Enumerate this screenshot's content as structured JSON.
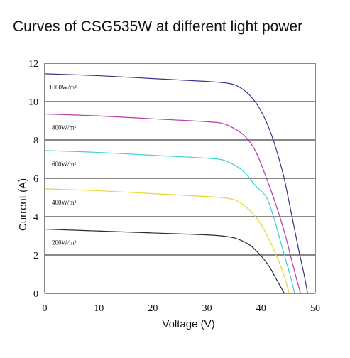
{
  "chart_data": {
    "type": "line",
    "title": "Curves of CSG535W at different light power",
    "xlabel": "Voltage (V)",
    "ylabel": "Current (A)",
    "xlim": [
      0,
      50
    ],
    "ylim": [
      0,
      12
    ],
    "x_ticks": [
      "0",
      "10",
      "20",
      "30",
      "40",
      "50"
    ],
    "y_ticks": [
      "0",
      "2",
      "4",
      "6",
      "8",
      "10",
      "12"
    ],
    "grid": "horizontal",
    "legend": "inline labels above each curve",
    "series": [
      {
        "name": "1000W/m²",
        "color": "#3a3385",
        "points": [
          [
            0,
            11.45
          ],
          [
            10,
            11.35
          ],
          [
            20,
            11.2
          ],
          [
            30,
            11.05
          ],
          [
            34,
            10.95
          ],
          [
            36,
            10.75
          ],
          [
            38,
            10.3
          ],
          [
            40,
            9.5
          ],
          [
            42,
            8.2
          ],
          [
            44,
            6.3
          ],
          [
            45,
            5.0
          ],
          [
            46,
            3.6
          ],
          [
            47,
            2.2
          ],
          [
            48,
            0.9
          ],
          [
            48.6,
            0
          ]
        ]
      },
      {
        "name": "800W/m²",
        "color": "#b13dac",
        "points": [
          [
            0,
            9.35
          ],
          [
            10,
            9.25
          ],
          [
            20,
            9.1
          ],
          [
            30,
            8.95
          ],
          [
            33,
            8.85
          ],
          [
            35,
            8.6
          ],
          [
            37,
            8.2
          ],
          [
            39,
            7.4
          ],
          [
            41,
            6.0
          ],
          [
            43,
            4.4
          ],
          [
            44.5,
            3.0
          ],
          [
            45.5,
            1.9
          ],
          [
            46.5,
            0.8
          ],
          [
            47.3,
            0
          ]
        ]
      },
      {
        "name": "600W/m²",
        "color": "#3ad0cc",
        "points": [
          [
            0,
            7.45
          ],
          [
            10,
            7.35
          ],
          [
            20,
            7.2
          ],
          [
            30,
            7.05
          ],
          [
            33,
            6.95
          ],
          [
            35,
            6.7
          ],
          [
            37,
            6.3
          ],
          [
            39,
            5.6
          ],
          [
            41,
            5.0
          ],
          [
            42.5,
            3.8
          ],
          [
            43.5,
            2.8
          ],
          [
            44.5,
            1.8
          ],
          [
            45.5,
            0.8
          ],
          [
            46.2,
            0
          ]
        ]
      },
      {
        "name": "400W/m²",
        "color": "#e8d630",
        "points": [
          [
            0,
            5.45
          ],
          [
            10,
            5.35
          ],
          [
            20,
            5.2
          ],
          [
            30,
            5.05
          ],
          [
            34,
            4.95
          ],
          [
            36,
            4.75
          ],
          [
            38,
            4.3
          ],
          [
            40,
            3.6
          ],
          [
            42,
            2.5
          ],
          [
            43.5,
            1.5
          ],
          [
            44.5,
            0.7
          ],
          [
            45.2,
            0
          ]
        ]
      },
      {
        "name": "200W/m²",
        "color": "#2b2b2b",
        "points": [
          [
            0,
            3.35
          ],
          [
            10,
            3.25
          ],
          [
            20,
            3.15
          ],
          [
            30,
            3.05
          ],
          [
            34,
            2.95
          ],
          [
            36,
            2.8
          ],
          [
            38,
            2.5
          ],
          [
            40,
            1.95
          ],
          [
            41.5,
            1.4
          ],
          [
            42.5,
            0.9
          ],
          [
            43.5,
            0.4
          ],
          [
            44.3,
            0
          ]
        ]
      }
    ]
  }
}
